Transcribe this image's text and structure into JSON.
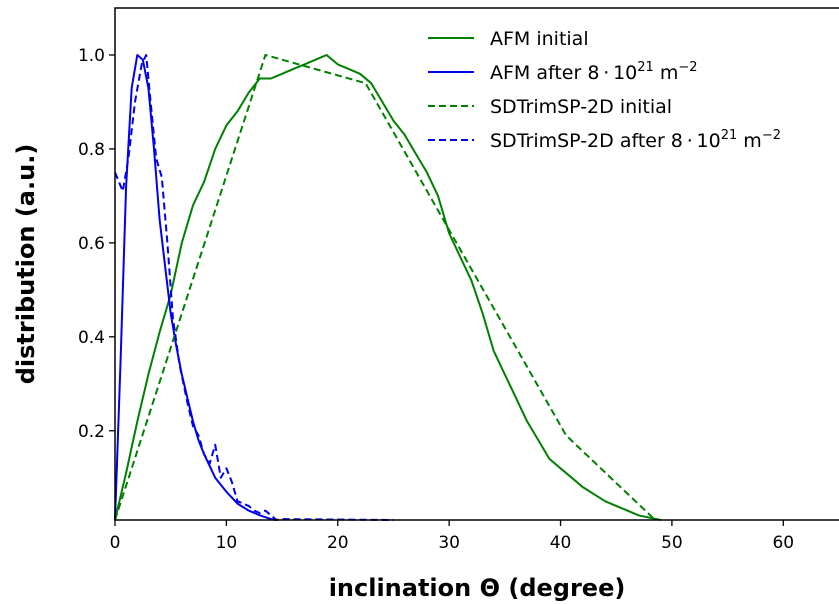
{
  "chart_data": {
    "type": "line",
    "xlabel": "inclination Θ (degree)",
    "ylabel": "distribution (a.u.)",
    "xlim": [
      0,
      65
    ],
    "ylim": [
      0.01,
      1.1
    ],
    "xticks": [
      0,
      10,
      20,
      30,
      40,
      50,
      60
    ],
    "yticks": [
      0.2,
      0.4,
      0.6,
      0.8,
      1.0
    ],
    "xtick_labels": [
      "0",
      "10",
      "20",
      "30",
      "40",
      "50",
      "60"
    ],
    "ytick_labels": [
      "0.2",
      "0.4",
      "0.6",
      "0.8",
      "1.0"
    ],
    "grid": false,
    "legend_position": "top-right",
    "series": [
      {
        "name": "AFM initial",
        "legend_label": {
          "text": "AFM initial",
          "exp": "",
          "suffix": ""
        },
        "color": "#008000",
        "dash": "solid",
        "x": [
          0,
          1,
          2,
          3,
          4,
          5,
          6,
          7,
          8,
          9,
          10,
          11,
          12,
          13,
          14,
          15,
          16,
          17,
          18,
          19,
          20,
          21,
          22,
          23,
          24,
          25,
          26,
          27,
          28,
          29,
          30,
          31,
          32,
          33,
          34,
          35,
          36,
          37,
          38,
          39,
          40,
          41,
          42,
          43,
          44,
          45,
          46,
          47,
          48,
          49
        ],
        "y": [
          0.01,
          0.11,
          0.22,
          0.32,
          0.41,
          0.49,
          0.6,
          0.68,
          0.73,
          0.8,
          0.85,
          0.88,
          0.92,
          0.95,
          0.95,
          0.96,
          0.97,
          0.98,
          0.99,
          1.0,
          0.98,
          0.97,
          0.96,
          0.94,
          0.9,
          0.86,
          0.83,
          0.79,
          0.75,
          0.7,
          0.62,
          0.57,
          0.52,
          0.45,
          0.37,
          0.32,
          0.27,
          0.22,
          0.18,
          0.14,
          0.12,
          0.1,
          0.08,
          0.065,
          0.05,
          0.04,
          0.03,
          0.02,
          0.015,
          0.01
        ]
      },
      {
        "name": "AFM after 8·10^21 m^-2",
        "legend_label": {
          "text": "AFM after 8 · 10",
          "exp": "21",
          "suffix": " m",
          "exp2": "−2"
        },
        "color": "#0000ee",
        "dash": "solid",
        "x": [
          0,
          0.5,
          1,
          1.5,
          2,
          2.5,
          3,
          3.5,
          4,
          4.5,
          5,
          5.5,
          6,
          6.5,
          7,
          7.5,
          8,
          9,
          10,
          11,
          12,
          13,
          14,
          14.5
        ],
        "y": [
          0.01,
          0.35,
          0.72,
          0.93,
          1.0,
          0.99,
          0.93,
          0.8,
          0.65,
          0.55,
          0.45,
          0.38,
          0.32,
          0.27,
          0.22,
          0.18,
          0.15,
          0.1,
          0.07,
          0.045,
          0.03,
          0.02,
          0.012,
          0.01
        ]
      },
      {
        "name": "SDTrimSP-2D initial",
        "legend_label": {
          "text": "SDTrimSP-2D initial",
          "exp": "",
          "suffix": ""
        },
        "color": "#008000",
        "dash": "dashed",
        "x": [
          0,
          13.5,
          22.5,
          40.5,
          48.5
        ],
        "y": [
          0.01,
          1.0,
          0.94,
          0.19,
          0.01
        ]
      },
      {
        "name": "SDTrimSP-2D after 8·10^21 m^-2",
        "legend_label": {
          "text": "SDTrimSP-2D after 8 · 10",
          "exp": "21",
          "suffix": " m",
          "exp2": "−2"
        },
        "color": "#0000ee",
        "dash": "dashed",
        "x": [
          0,
          0.7,
          1.2,
          1.8,
          2.4,
          2.8,
          3.2,
          3.7,
          4.2,
          4.7,
          5.2,
          5.8,
          6.5,
          7,
          7.5,
          8,
          8.5,
          9,
          9.5,
          10,
          10.5,
          11,
          11.5,
          12,
          12.5,
          13,
          13.5,
          14,
          14.5,
          15,
          25
        ],
        "y": [
          0.75,
          0.71,
          0.78,
          0.9,
          0.98,
          1.0,
          0.9,
          0.78,
          0.74,
          0.6,
          0.44,
          0.34,
          0.26,
          0.21,
          0.19,
          0.15,
          0.13,
          0.17,
          0.1,
          0.12,
          0.09,
          0.05,
          0.045,
          0.04,
          0.03,
          0.025,
          0.03,
          0.02,
          0.01,
          0.012,
          0.01
        ]
      }
    ]
  }
}
